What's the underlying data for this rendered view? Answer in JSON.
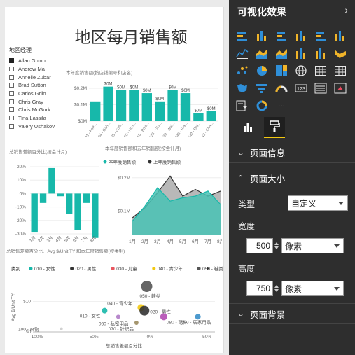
{
  "report": {
    "title": "地区每月销售额",
    "slicer": {
      "header": "地区经理",
      "items": [
        {
          "label": "Allan Guinot",
          "checked": true
        },
        {
          "label": "Andrew Ma",
          "checked": false
        },
        {
          "label": "Annelie Zubar",
          "checked": false
        },
        {
          "label": "Brad Sutton",
          "checked": false
        },
        {
          "label": "Carlos Grilo",
          "checked": false
        },
        {
          "label": "Chris Gray",
          "checked": false
        },
        {
          "label": "Chris McGurk",
          "checked": false
        },
        {
          "label": "Tina Lassila",
          "checked": false
        },
        {
          "label": "Valery Ushakov",
          "checked": false
        }
      ]
    }
  },
  "chart_data": [
    {
      "type": "bar",
      "title": "本年度销售额(按店铺编号和店名)",
      "yticks": [
        "$0.2M",
        "$0.1M",
        "$0M"
      ],
      "ylim": [
        0,
        0.2
      ],
      "categories": [
        "501 - Fort ...",
        "504 - Gah...",
        "505 - Colli...",
        "510 - Nort...",
        "516 - Bow...",
        "526 - Glo...",
        "530 - Wel...",
        "545 - Fra...",
        "542 - Dal...",
        "543 - Cha..."
      ],
      "values": [
        0.12,
        0.21,
        0.19,
        0.19,
        0.17,
        0.12,
        0.19,
        0.17,
        0.05,
        0.06
      ],
      "value_labels": [
        "",
        "$0M",
        "$0M",
        "$0M",
        "$0M",
        "$0M",
        "$0M",
        "$0M",
        "$0M",
        "$0M"
      ],
      "color": "#17b8aa"
    },
    {
      "type": "bar",
      "title": "总销售差额百分比(按会计月)",
      "yticks": [
        "20%",
        "10%",
        "0%",
        "-10%",
        "-20%",
        "-30%"
      ],
      "ylim": [
        -30,
        20
      ],
      "categories": [
        "1月",
        "2月",
        "3月",
        "4月",
        "5月",
        "6月",
        "7月",
        "8月"
      ],
      "values": [
        -29,
        -7,
        19,
        -2,
        -15,
        -27,
        -7,
        -33
      ],
      "color": "#17b8aa"
    },
    {
      "type": "area",
      "title": "本年度销售额和去年销售额(按会计月)",
      "legend": [
        "本年度销售额",
        "上年度销售额"
      ],
      "legend_colors": [
        "#17b8aa",
        "#333333"
      ],
      "yticks": [
        "$0.2M",
        "$0.1M"
      ],
      "categories": [
        "1月",
        "2月",
        "3月",
        "4月",
        "5月",
        "6月",
        "7月",
        "8月"
      ],
      "series": [
        {
          "name": "本年度销售额",
          "values": [
            0.07,
            0.115,
            0.17,
            0.13,
            0.14,
            0.145,
            0.16,
            0.12
          ],
          "color": "#17b8aa"
        },
        {
          "name": "上年度销售额",
          "values": [
            0.08,
            0.11,
            0.155,
            0.205,
            0.145,
            0.165,
            0.145,
            0.16
          ],
          "color": "#333333"
        }
      ]
    },
    {
      "type": "scatter",
      "title": "总销售差额百分比、Avg $/Unit TY 和本年度销售额(按类别)",
      "legend_title": "类别",
      "legend": [
        {
          "label": "010 - 女性",
          "color": "#17b8aa"
        },
        {
          "label": "020 - 男性",
          "color": "#333333"
        },
        {
          "label": "030 - 儿童",
          "color": "#e8555e"
        },
        {
          "label": "040 - 青少年",
          "color": "#f2c811"
        },
        {
          "label": "050 - 鞋类",
          "color": "#555555"
        }
      ],
      "xlabel": "总销售差额百分比",
      "ylabel": "Avg $/Unit TY",
      "xticks": [
        "-100%",
        "-50%",
        "0%",
        "50%"
      ],
      "yticks": [
        "$10",
        "$0"
      ],
      "points": [
        {
          "label": "100 - 杂物",
          "x": -78,
          "y": 1,
          "r": 2,
          "color": "#cccccc"
        },
        {
          "label": "010 - 女性",
          "x": -40,
          "y": 7,
          "r": 4,
          "color": "#17b8aa"
        },
        {
          "label": "060 - 私密用品",
          "x": -28,
          "y": 5,
          "r": 3,
          "color": "#b07cc6"
        },
        {
          "label": "070 - 针织品",
          "x": -12,
          "y": 3,
          "r": 3,
          "color": "#9b8b5e"
        },
        {
          "label": "040 - 青少年",
          "x": -8,
          "y": 8,
          "r": 5,
          "color": "#f2c811"
        },
        {
          "label": "020 - 男性",
          "x": -5,
          "y": 7,
          "r": 7,
          "color": "#333333"
        },
        {
          "label": "050 - 鞋类",
          "x": -3,
          "y": 15,
          "r": 8,
          "color": "#555555"
        },
        {
          "label": "080 - 配件",
          "x": 12,
          "y": 5,
          "r": 5,
          "color": "#b34db3"
        },
        {
          "label": "090 - 居家用品",
          "x": 42,
          "y": 5,
          "r": 4,
          "color": "#3a8fc9"
        }
      ]
    }
  ],
  "pane": {
    "title": "可视化效果",
    "visual_icons": [
      "stacked-bar-icon",
      "stacked-column-icon",
      "clustered-bar-icon",
      "clustered-column-icon",
      "100pct-bar-icon",
      "100pct-column-icon",
      "line-chart-icon",
      "area-chart-icon",
      "stacked-area-icon",
      "line-column-icon",
      "line-clustered-column-icon",
      "ribbon-chart-icon",
      "scatter-chart-icon",
      "pie-chart-icon",
      "treemap-icon",
      "map-icon",
      "table-icon",
      "matrix-icon",
      "filled-map-icon",
      "funnel-icon",
      "gauge-icon",
      "card-icon",
      "multirow-card-icon",
      "kpi-icon",
      "slicer-icon",
      "donut-chart-icon",
      "more-icon"
    ],
    "tabs": [
      "fields-icon",
      "format-paintroller-icon"
    ],
    "sections": {
      "page_info": "页面信息",
      "page_size": "页面大小",
      "page_background": "页面背景"
    },
    "type_label": "类型",
    "type_value": "自定义",
    "width_label": "宽度",
    "width_value": "500",
    "width_unit": "像素",
    "height_label": "高度",
    "height_value": "750",
    "height_unit": "像素",
    "more_glyph": "···"
  }
}
